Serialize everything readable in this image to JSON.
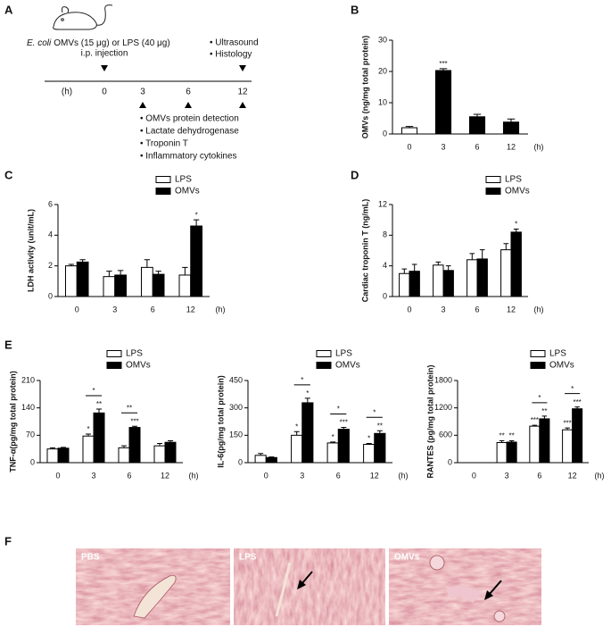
{
  "panel_a": {
    "panel": "A",
    "agent_italic": "E. coli",
    "agent_rest": "OMVs (15 μg) or LPS (40 μg)",
    "route": "i.p. injection",
    "late": [
      "• Ultrasound",
      "• Histology"
    ],
    "unit": "(h)",
    "timepoints": [
      "0",
      "3",
      "6",
      "12"
    ],
    "assays": [
      "• OMVs protein detection",
      "• Lactate dehydrogenase",
      "• Troponin T",
      "• Inflammatory cytokines"
    ]
  },
  "chart_data": [
    {
      "type": "bar",
      "panel": "B",
      "ylabel": "OMVs (ng/mg total protein)",
      "x_unit": "(h)",
      "categories": [
        "0",
        "3",
        "6",
        "12"
      ],
      "values": [
        2,
        20.3,
        5.5,
        3.8
      ],
      "errors": [
        0.4,
        0.6,
        0.8,
        1.0
      ],
      "colors": [
        "#ffffff",
        "#000000",
        "#000000",
        "#000000"
      ],
      "bar_annotations": [
        null,
        "***",
        null,
        null
      ],
      "ylim": [
        0,
        30
      ],
      "yticks": [
        0,
        10,
        20,
        30
      ]
    },
    {
      "type": "bar",
      "panel": "C",
      "ylabel": "LDH activity (unit/mL)",
      "x_unit": "(h)",
      "categories": [
        "0",
        "3",
        "6",
        "12"
      ],
      "series": [
        {
          "name": "LPS",
          "color": "#ffffff",
          "values": [
            2.0,
            1.3,
            1.9,
            1.4
          ],
          "errors": [
            0.1,
            0.35,
            0.5,
            0.5
          ],
          "bar_annotations": [
            null,
            null,
            null,
            null
          ]
        },
        {
          "name": "OMVs",
          "color": "#000000",
          "values": [
            2.25,
            1.4,
            1.45,
            4.6
          ],
          "errors": [
            0.15,
            0.3,
            0.2,
            0.4
          ],
          "bar_annotations": [
            null,
            null,
            null,
            "*"
          ]
        }
      ],
      "ylim": [
        0,
        6
      ],
      "yticks": [
        0,
        2,
        4,
        6
      ]
    },
    {
      "type": "bar",
      "panel": "D",
      "ylabel": "Cardiac troponin T (ng/mL)",
      "x_unit": "(h)",
      "categories": [
        "0",
        "3",
        "6",
        "12"
      ],
      "series": [
        {
          "name": "LPS",
          "color": "#ffffff",
          "values": [
            3.0,
            4.1,
            4.8,
            6.1
          ],
          "errors": [
            0.6,
            0.4,
            0.8,
            0.8
          ],
          "bar_annotations": [
            null,
            null,
            null,
            null
          ]
        },
        {
          "name": "OMVs",
          "color": "#000000",
          "values": [
            3.3,
            3.4,
            4.9,
            8.4
          ],
          "errors": [
            0.9,
            0.6,
            1.2,
            0.4
          ],
          "bar_annotations": [
            null,
            null,
            null,
            "*"
          ]
        }
      ],
      "ylim": [
        0,
        12
      ],
      "yticks": [
        0,
        4,
        8,
        12
      ]
    },
    {
      "type": "bar",
      "panel": "E",
      "ylabel": "TNF-α(pg/mg total protein)",
      "x_unit": "(h)",
      "categories": [
        "0",
        "3",
        "6",
        "12"
      ],
      "series": [
        {
          "name": "LPS",
          "color": "#ffffff",
          "values": [
            35,
            68,
            38,
            43
          ],
          "errors": [
            3,
            5,
            5,
            6
          ],
          "bar_annotations": [
            null,
            "*",
            null,
            null
          ]
        },
        {
          "name": "OMVs",
          "color": "#000000",
          "values": [
            37,
            127,
            90,
            52
          ],
          "errors": [
            2,
            10,
            3,
            4
          ],
          "bar_annotations": [
            null,
            "**",
            "***",
            null
          ]
        }
      ],
      "bracket_labels": [
        null,
        "*",
        "**",
        null
      ],
      "ylim": [
        0,
        210
      ],
      "yticks": [
        0,
        70,
        140,
        210
      ]
    },
    {
      "type": "bar",
      "ylabel": "IL-6(pg/mg total protein)",
      "x_unit": "(h)",
      "categories": [
        "0",
        "3",
        "6",
        "12"
      ],
      "series": [
        {
          "name": "LPS",
          "color": "#ffffff",
          "values": [
            40,
            150,
            108,
            100
          ],
          "errors": [
            10,
            20,
            5,
            5
          ],
          "bar_annotations": [
            null,
            "*",
            "*",
            "*"
          ]
        },
        {
          "name": "OMVs",
          "color": "#000000",
          "values": [
            28,
            328,
            183,
            160
          ],
          "errors": [
            3,
            25,
            10,
            15
          ],
          "bar_annotations": [
            null,
            "*",
            "***",
            "**"
          ]
        }
      ],
      "bracket_labels": [
        null,
        "*",
        "*",
        "*"
      ],
      "ylim": [
        0,
        450
      ],
      "yticks": [
        0,
        150,
        300,
        450
      ]
    },
    {
      "type": "bar",
      "ylabel": "RANTES (pg/mg total protein)",
      "x_unit": "(h)",
      "categories": [
        "0",
        "3",
        "6",
        "12"
      ],
      "series": [
        {
          "name": "LPS",
          "color": "#ffffff",
          "values": [
            0,
            440,
            800,
            720
          ],
          "errors": [
            0,
            40,
            20,
            40
          ],
          "bar_annotations": [
            null,
            "**",
            "***",
            "***"
          ]
        },
        {
          "name": "OMVs",
          "color": "#000000",
          "values": [
            0,
            450,
            960,
            1180
          ],
          "errors": [
            0,
            30,
            60,
            40
          ],
          "bar_annotations": [
            null,
            "**",
            "**",
            "***"
          ]
        }
      ],
      "bracket_labels": [
        null,
        null,
        "*",
        "*"
      ],
      "ylim": [
        0,
        1800
      ],
      "yticks": [
        0,
        600,
        1200,
        1800
      ]
    }
  ],
  "panel_f": {
    "panel": "F",
    "labels": [
      "PBS",
      "LPS",
      "OMVs"
    ]
  }
}
